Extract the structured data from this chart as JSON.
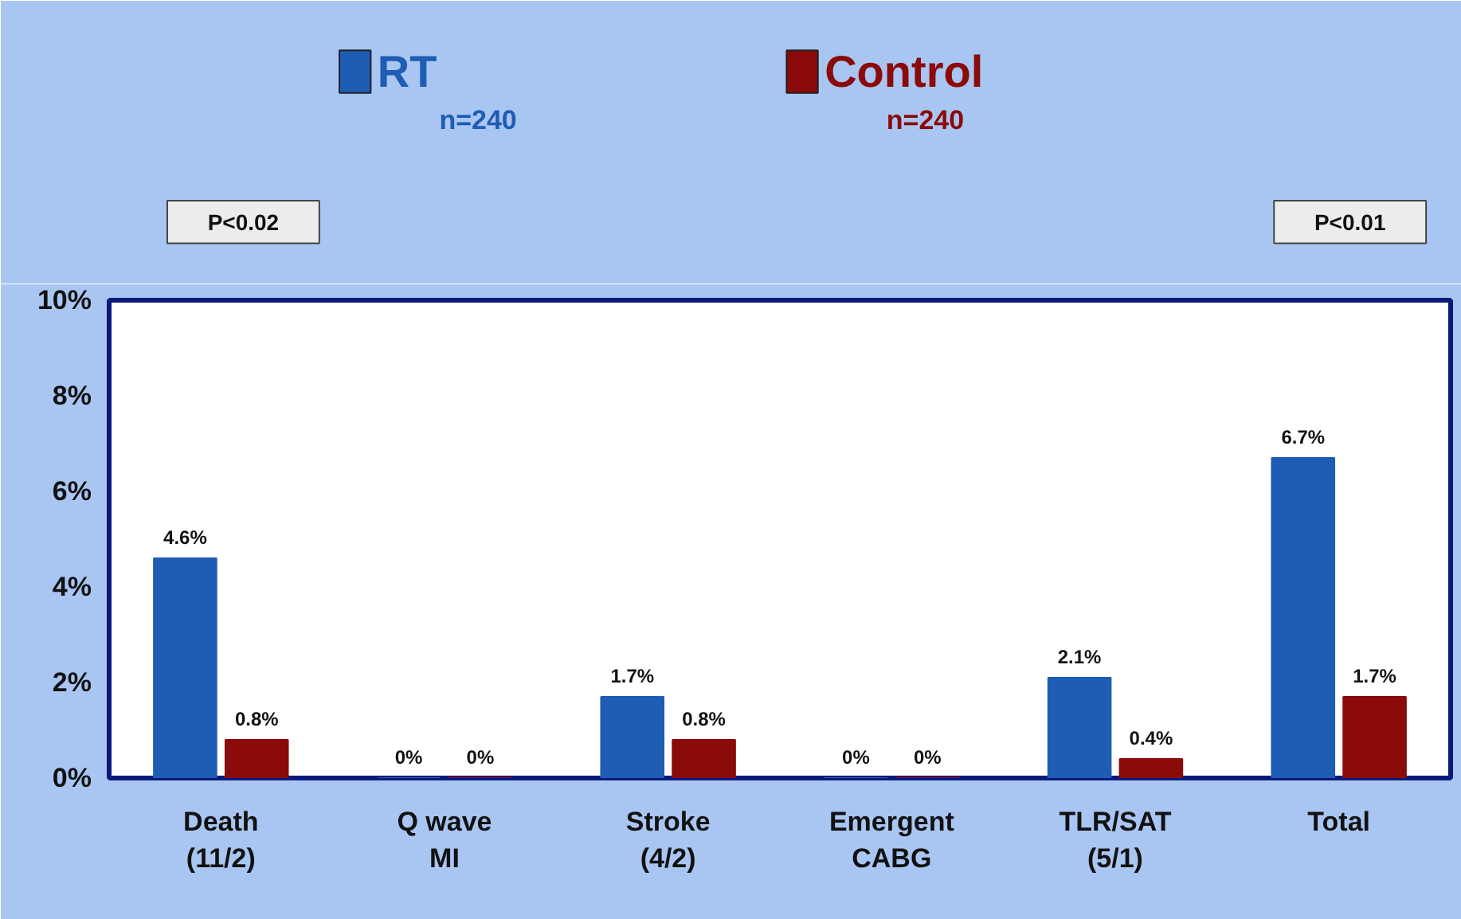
{
  "chart_data": {
    "type": "bar",
    "categories": [
      "Death\n(11/2)",
      "Q wave\nMI",
      "Stroke\n(4/2)",
      "Emergent\nCABG",
      "TLR/SAT\n(5/1)",
      "Total"
    ],
    "series": [
      {
        "name": "RT",
        "color": "#1f5cb3",
        "values": [
          4.6,
          0,
          1.7,
          0,
          2.1,
          6.7
        ],
        "value_labels": [
          "4.6%",
          "0%",
          "1.7%",
          "0%",
          "2.1%",
          "6.7%"
        ]
      },
      {
        "name": "Control",
        "color": "#8b0a0a",
        "values": [
          0.8,
          0,
          0.8,
          0,
          0.4,
          1.7
        ],
        "value_labels": [
          "0.8%",
          "0%",
          "0.8%",
          "0%",
          "0.4%",
          "1.7%"
        ]
      }
    ],
    "ylim": [
      0,
      10
    ],
    "yticks": [
      {
        "value": 0,
        "label": "0%"
      },
      {
        "value": 2,
        "label": "2%"
      },
      {
        "value": 4,
        "label": "4%"
      },
      {
        "value": 6,
        "label": "6%"
      },
      {
        "value": 8,
        "label": "8%"
      },
      {
        "value": 10,
        "label": "10%"
      }
    ],
    "grid": false,
    "legend": "top",
    "annotations": [
      "n=240",
      "n=240",
      "P<0.02",
      "P<0.01"
    ]
  }
}
